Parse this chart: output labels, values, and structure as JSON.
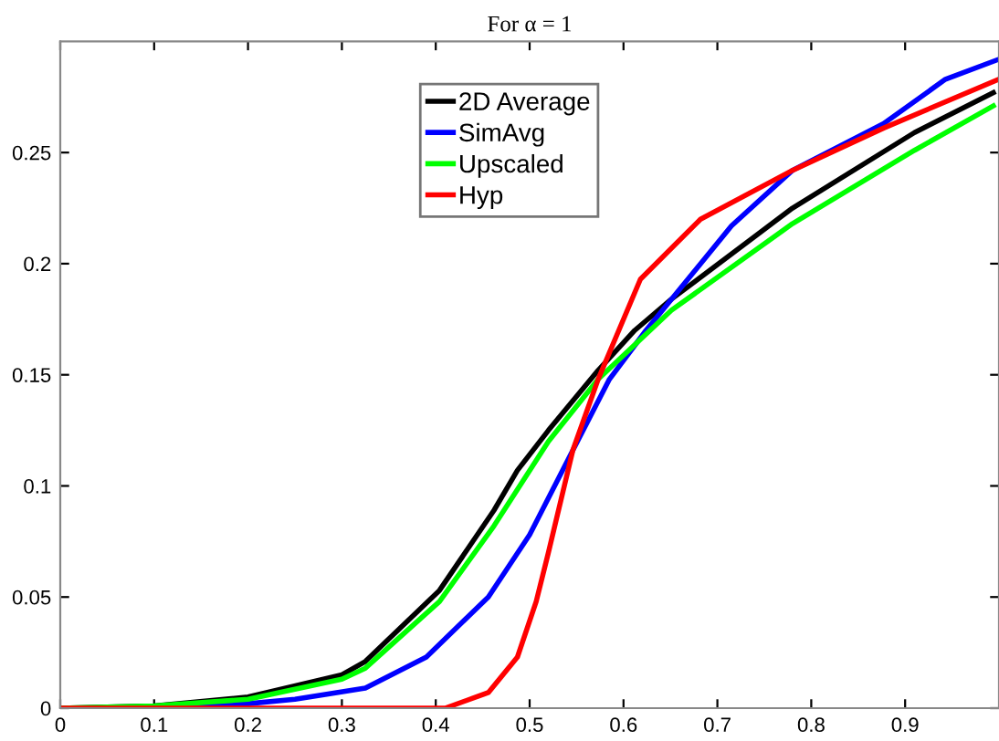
{
  "chart_data": {
    "type": "line",
    "title": "For α = 1",
    "xlim": [
      0,
      1
    ],
    "ylim": [
      0,
      0.3
    ],
    "xticks": [
      0,
      0.1,
      0.2,
      0.3,
      0.4,
      0.5,
      0.6,
      0.7,
      0.8,
      0.9
    ],
    "yticks": [
      0,
      0.05,
      0.1,
      0.15,
      0.2,
      0.25
    ],
    "legend": "top left",
    "grid": false,
    "marker": "none",
    "line_style": "solid",
    "series": [
      {
        "name": "2D Average",
        "color": "#000000",
        "x": [
          0,
          0.1,
          0.2,
          0.3,
          0.325,
          0.404,
          0.462,
          0.487,
          0.52,
          0.573,
          0.612,
          0.651,
          0.78,
          0.91,
          0.994
        ],
        "values": [
          0,
          0.001,
          0.005,
          0.015,
          0.021,
          0.053,
          0.089,
          0.107,
          0.125,
          0.152,
          0.17,
          0.184,
          0.225,
          0.259,
          0.277
        ]
      },
      {
        "name": "SimAvg",
        "color": "#0000ff",
        "x": [
          0,
          0.1,
          0.2,
          0.25,
          0.325,
          0.39,
          0.456,
          0.5,
          0.546,
          0.585,
          0.624,
          0.715,
          0.78,
          0.877,
          0.943,
          1.0
        ],
        "values": [
          0,
          0,
          0.002,
          0.004,
          0.009,
          0.023,
          0.05,
          0.078,
          0.116,
          0.148,
          0.17,
          0.217,
          0.242,
          0.263,
          0.283,
          0.292
        ]
      },
      {
        "name": "Upscaled",
        "color": "#00ff00",
        "x": [
          0,
          0.1,
          0.2,
          0.3,
          0.325,
          0.404,
          0.462,
          0.52,
          0.573,
          0.651,
          0.78,
          0.91,
          0.994
        ],
        "values": [
          0,
          0.001,
          0.004,
          0.013,
          0.018,
          0.048,
          0.082,
          0.12,
          0.148,
          0.179,
          0.218,
          0.251,
          0.271
        ]
      },
      {
        "name": "Hyp",
        "color": "#ff0000",
        "x": [
          0,
          0.41,
          0.456,
          0.487,
          0.507,
          0.52,
          0.546,
          0.573,
          0.595,
          0.618,
          0.682,
          0.78,
          0.877,
          1.0
        ],
        "values": [
          0,
          0,
          0.007,
          0.023,
          0.048,
          0.07,
          0.116,
          0.148,
          0.17,
          0.193,
          0.22,
          0.242,
          0.261,
          0.283
        ]
      }
    ]
  }
}
